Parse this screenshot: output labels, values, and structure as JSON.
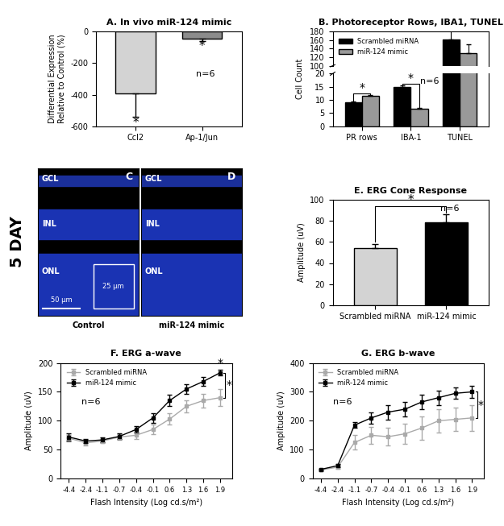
{
  "chart_data": [
    {
      "type": "bar",
      "title": "A. In vivo miR-124 mimic",
      "ylabel": "Differential Expression\nRelative to Control (%)",
      "categories": [
        "Ccl2",
        "Ap-1/Jun"
      ],
      "values": [
        -390,
        -45
      ],
      "errors": [
        150,
        15
      ],
      "colors": [
        "#d3d3d3",
        "#8c8c8c"
      ],
      "ylim": [
        -600,
        0
      ],
      "yticks": [
        -600,
        -400,
        -200,
        0
      ],
      "annotation": "n=6",
      "significance": [
        "*",
        "*"
      ]
    },
    {
      "type": "grouped_bar",
      "title": "B. Photoreceptor Rows, IBA1, TUNEL",
      "ylabel": "Cell Count",
      "categories": [
        "PR rows",
        "IBA-1",
        "TUNEL"
      ],
      "series": [
        {
          "name": "Scrambled miRNA",
          "color": "#000000",
          "values": [
            9,
            15,
            162
          ],
          "errors": [
            0.3,
            0.5,
            22
          ]
        },
        {
          "name": "miR-124 mimic",
          "color": "#999999",
          "values": [
            11.5,
            6.5,
            130
          ],
          "errors": [
            0.5,
            0.4,
            20
          ]
        }
      ],
      "ylim": [
        0,
        180
      ],
      "y_break": [
        20,
        100
      ],
      "yticks": [
        0,
        5,
        10,
        15,
        20,
        100,
        120,
        140,
        160,
        180
      ],
      "legend": "upper left",
      "annotation": "n=6",
      "significance": [
        {
          "category": "PR rows",
          "text": "*"
        },
        {
          "category": "IBA-1",
          "text": "*"
        }
      ]
    },
    {
      "type": "bar",
      "title": "E. ERG Cone Response",
      "ylabel": "Amplitude (uV)",
      "categories": [
        "Scrambled miRNA",
        "miR-124 mimic"
      ],
      "values": [
        54,
        79
      ],
      "errors": [
        4,
        7
      ],
      "colors": [
        "#d3d3d3",
        "#000000"
      ],
      "ylim": [
        0,
        100
      ],
      "yticks": [
        0,
        20,
        40,
        60,
        80,
        100
      ],
      "annotation": "n=6",
      "significance_bracket": "*"
    },
    {
      "type": "line",
      "title": "F. ERG a-wave",
      "xlabel": "Flash Intensity (Log cd.s/m²)",
      "ylabel": "Amplitude (uV)",
      "categories": [
        "-4.4",
        "-2.4",
        "-1.1",
        "-0.7",
        "-0.4",
        "-0.1",
        "0.6",
        "1.3",
        "1.6",
        "1.9"
      ],
      "series": [
        {
          "name": "Scrambled miRNA",
          "color": "#aaaaaa",
          "marker": "s",
          "values": [
            70,
            62,
            65,
            72,
            75,
            85,
            103,
            125,
            135,
            140
          ],
          "errors": [
            6,
            5,
            4,
            5,
            6,
            8,
            10,
            10,
            12,
            15
          ]
        },
        {
          "name": "miR-124 mimic",
          "color": "#000000",
          "marker": "s",
          "values": [
            72,
            65,
            67,
            73,
            85,
            105,
            135,
            155,
            168,
            183
          ],
          "errors": [
            6,
            4,
            4,
            5,
            6,
            8,
            10,
            8,
            8,
            5
          ]
        }
      ],
      "ylim": [
        0,
        200
      ],
      "yticks": [
        0,
        50,
        100,
        150,
        200
      ],
      "legend": "upper left",
      "annotation": "n=6",
      "significance_point": {
        "category": "1.9",
        "text": "*"
      },
      "significance_bracket": "*"
    },
    {
      "type": "line",
      "title": "G. ERG b-wave",
      "xlabel": "Flash Intensity (Log cd.s/m²)",
      "ylabel": "Amplitude (uV)",
      "categories": [
        "-4.4",
        "-2.4",
        "-1.1",
        "-0.7",
        "-0.4",
        "-0.1",
        "0.6",
        "1.3",
        "1.6",
        "1.9"
      ],
      "series": [
        {
          "name": "Scrambled miRNA",
          "color": "#aaaaaa",
          "marker": "s",
          "values": [
            30,
            40,
            125,
            150,
            145,
            155,
            175,
            200,
            205,
            210
          ],
          "errors": [
            3,
            5,
            25,
            30,
            30,
            35,
            40,
            40,
            40,
            45
          ]
        },
        {
          "name": "miR-124 mimic",
          "color": "#000000",
          "marker": "s",
          "values": [
            32,
            45,
            185,
            210,
            230,
            240,
            265,
            280,
            295,
            300
          ],
          "errors": [
            3,
            5,
            10,
            20,
            25,
            25,
            25,
            25,
            20,
            20
          ]
        }
      ],
      "ylim": [
        0,
        400
      ],
      "yticks": [
        0,
        100,
        200,
        300,
        400
      ],
      "legend": "upper left",
      "annotation": "n=6",
      "significance_bracket": "*"
    }
  ],
  "images": [
    {
      "label": "C",
      "caption": "Control",
      "layers": [
        "GCL",
        "INL",
        "ONL"
      ],
      "scale_bars": [
        "50 µm",
        "25 µm"
      ]
    },
    {
      "label": "D",
      "caption": "miR-124 mimic",
      "layers": [
        "GCL",
        "INL",
        "ONL"
      ]
    }
  ],
  "side_label": "5 DAY"
}
